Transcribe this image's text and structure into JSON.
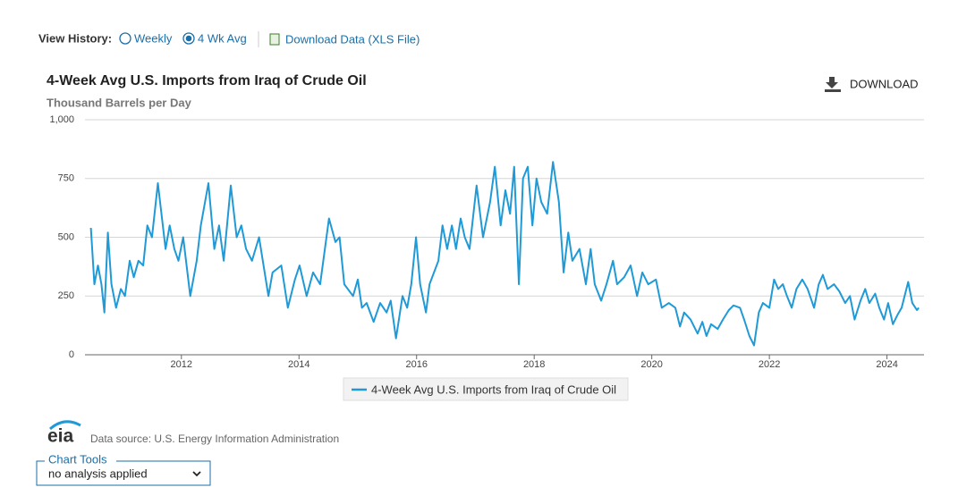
{
  "controls": {
    "view_history": "View History:",
    "weekly": "Weekly",
    "four_week": "4 Wk Avg",
    "download_data": "Download Data (XLS File)",
    "download": "DOWNLOAD"
  },
  "footer": {
    "logo": "eia",
    "source": "Data source: U.S. Energy Information Administration",
    "chart_tools": "Chart Tools",
    "analysis": "no analysis applied"
  },
  "chart_data": {
    "type": "line",
    "title": "4-Week Avg U.S. Imports from Iraq of Crude Oil",
    "subtitle": "Thousand Barrels per Day",
    "x": [
      2010.46,
      2010.52,
      2010.58,
      2010.64,
      2010.69,
      2010.75,
      2010.81,
      2010.89,
      2010.97,
      2011.04,
      2011.12,
      2011.19,
      2011.27,
      2011.35,
      2011.42,
      2011.5,
      2011.6,
      2011.73,
      2011.8,
      2011.88,
      2011.95,
      2012.03,
      2012.15,
      2012.26,
      2012.33,
      2012.46,
      2012.56,
      2012.64,
      2012.72,
      2012.84,
      2012.94,
      2013.02,
      2013.1,
      2013.2,
      2013.32,
      2013.48,
      2013.55,
      2013.7,
      2013.81,
      2013.93,
      2014.01,
      2014.13,
      2014.24,
      2014.36,
      2014.51,
      2014.62,
      2014.69,
      2014.77,
      2014.92,
      2015.0,
      2015.07,
      2015.15,
      2015.27,
      2015.38,
      2015.49,
      2015.56,
      2015.65,
      2015.76,
      2015.84,
      2015.91,
      2015.99,
      2016.06,
      2016.16,
      2016.22,
      2016.37,
      2016.44,
      2016.52,
      2016.6,
      2016.67,
      2016.75,
      2016.82,
      2016.9,
      2017.02,
      2017.13,
      2017.25,
      2017.33,
      2017.43,
      2017.51,
      2017.59,
      2017.66,
      2017.74,
      2017.81,
      2017.89,
      2017.97,
      2018.04,
      2018.12,
      2018.22,
      2018.32,
      2018.42,
      2018.5,
      2018.58,
      2018.65,
      2018.77,
      2018.88,
      2018.96,
      2019.03,
      2019.14,
      2019.23,
      2019.34,
      2019.41,
      2019.53,
      2019.64,
      2019.75,
      2019.84,
      2019.94,
      2020.07,
      2020.17,
      2020.29,
      2020.4,
      2020.48,
      2020.55,
      2020.66,
      2020.78,
      2020.86,
      2020.93,
      2021.01,
      2021.12,
      2021.21,
      2021.31,
      2021.39,
      2021.5,
      2021.57,
      2021.66,
      2021.74,
      2021.82,
      2021.89,
      2022.0,
      2022.08,
      2022.15,
      2022.23,
      2022.3,
      2022.38,
      2022.46,
      2022.56,
      2022.65,
      2022.76,
      2022.84,
      2022.91,
      2022.99,
      2023.1,
      2023.19,
      2023.29,
      2023.37,
      2023.45,
      2023.55,
      2023.63,
      2023.7,
      2023.8,
      2023.87,
      2023.95,
      2024.02,
      2024.1,
      2024.18,
      2024.25,
      2024.36,
      2024.43,
      2024.51,
      2024.54
    ],
    "series": [
      {
        "name": "4-Week Avg U.S. Imports from Iraq of Crude Oil",
        "color": "#1f9ad6",
        "values": [
          540,
          300,
          380,
          300,
          180,
          520,
          300,
          200,
          280,
          250,
          400,
          330,
          400,
          380,
          550,
          500,
          730,
          450,
          550,
          450,
          400,
          500,
          250,
          400,
          550,
          730,
          450,
          550,
          400,
          720,
          500,
          550,
          450,
          400,
          500,
          250,
          350,
          380,
          200,
          320,
          380,
          250,
          350,
          300,
          580,
          480,
          500,
          300,
          250,
          320,
          200,
          220,
          140,
          220,
          180,
          230,
          70,
          250,
          200,
          300,
          500,
          300,
          180,
          300,
          400,
          550,
          450,
          550,
          450,
          580,
          500,
          450,
          720,
          500,
          650,
          800,
          550,
          700,
          600,
          800,
          300,
          750,
          800,
          550,
          750,
          650,
          600,
          820,
          650,
          350,
          520,
          400,
          450,
          300,
          450,
          300,
          230,
          300,
          400,
          300,
          330,
          380,
          250,
          350,
          300,
          320,
          200,
          220,
          200,
          120,
          180,
          150,
          90,
          140,
          80,
          130,
          110,
          150,
          190,
          210,
          200,
          150,
          80,
          40,
          180,
          220,
          200,
          320,
          280,
          300,
          250,
          200,
          280,
          320,
          280,
          200,
          300,
          340,
          280,
          300,
          270,
          220,
          250,
          150,
          230,
          280,
          220,
          260,
          200,
          150,
          220,
          130,
          170,
          200,
          310,
          220,
          190,
          200
        ]
      }
    ],
    "xlim": [
      2010.36,
      2024.63
    ],
    "xticks": [
      2012,
      2014,
      2016,
      2018,
      2020,
      2022,
      2024
    ],
    "ylim": [
      0,
      1000
    ],
    "yticks": [
      0,
      250,
      500,
      750,
      {
        "value": 1000,
        "label": "1,000"
      }
    ],
    "grid": true,
    "legend": "bottom"
  }
}
